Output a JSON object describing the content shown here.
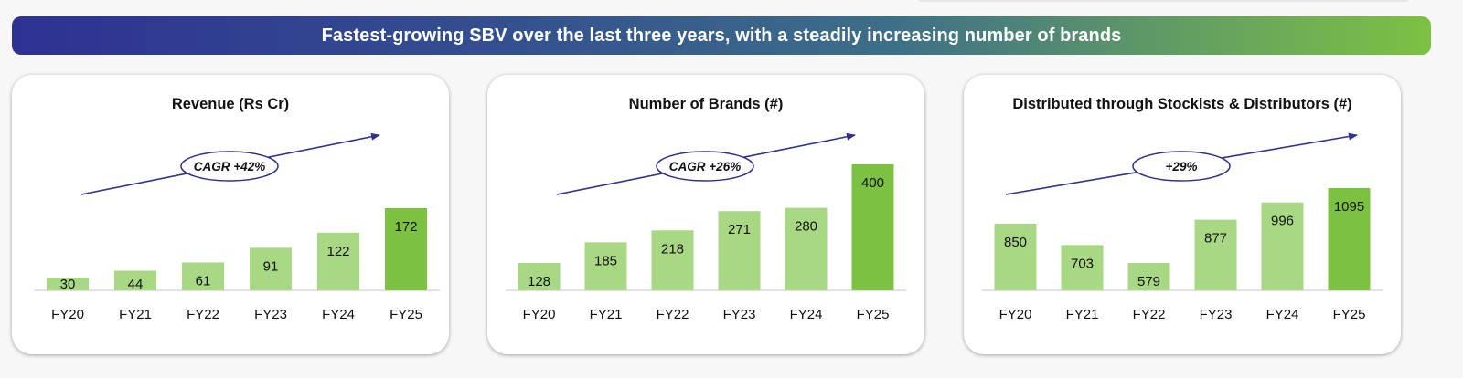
{
  "banner": {
    "title": "Fastest-growing SBV over the last three years, with a steadily increasing number of brands"
  },
  "colors": {
    "bar": "#a9d884",
    "highlight": "#7cc142",
    "arrow": "#2e3192",
    "axis": "#d9d9d9"
  },
  "chart_data": [
    {
      "type": "bar",
      "title": "Revenue (Rs Cr)",
      "categories": [
        "FY20",
        "FY21",
        "FY22",
        "FY23",
        "FY24",
        "FY25"
      ],
      "values": [
        30,
        44,
        61,
        91,
        122,
        172
      ],
      "annotation": "CAGR +42%",
      "ylim": [
        0,
        172
      ]
    },
    {
      "type": "bar",
      "title": "Number of Brands (#)",
      "categories": [
        "FY20",
        "FY21",
        "FY22",
        "FY23",
        "FY24",
        "FY25"
      ],
      "values": [
        128,
        185,
        218,
        271,
        280,
        400
      ],
      "annotation": "CAGR +26%",
      "ylim": [
        0,
        400
      ]
    },
    {
      "type": "bar",
      "title": "Distributed through Stockists & Distributors (#)",
      "categories": [
        "FY20",
        "FY21",
        "FY22",
        "FY23",
        "FY24",
        "FY25"
      ],
      "values": [
        850,
        703,
        579,
        877,
        996,
        1095
      ],
      "annotation": "+29%",
      "ylim": [
        0,
        1095
      ]
    }
  ]
}
